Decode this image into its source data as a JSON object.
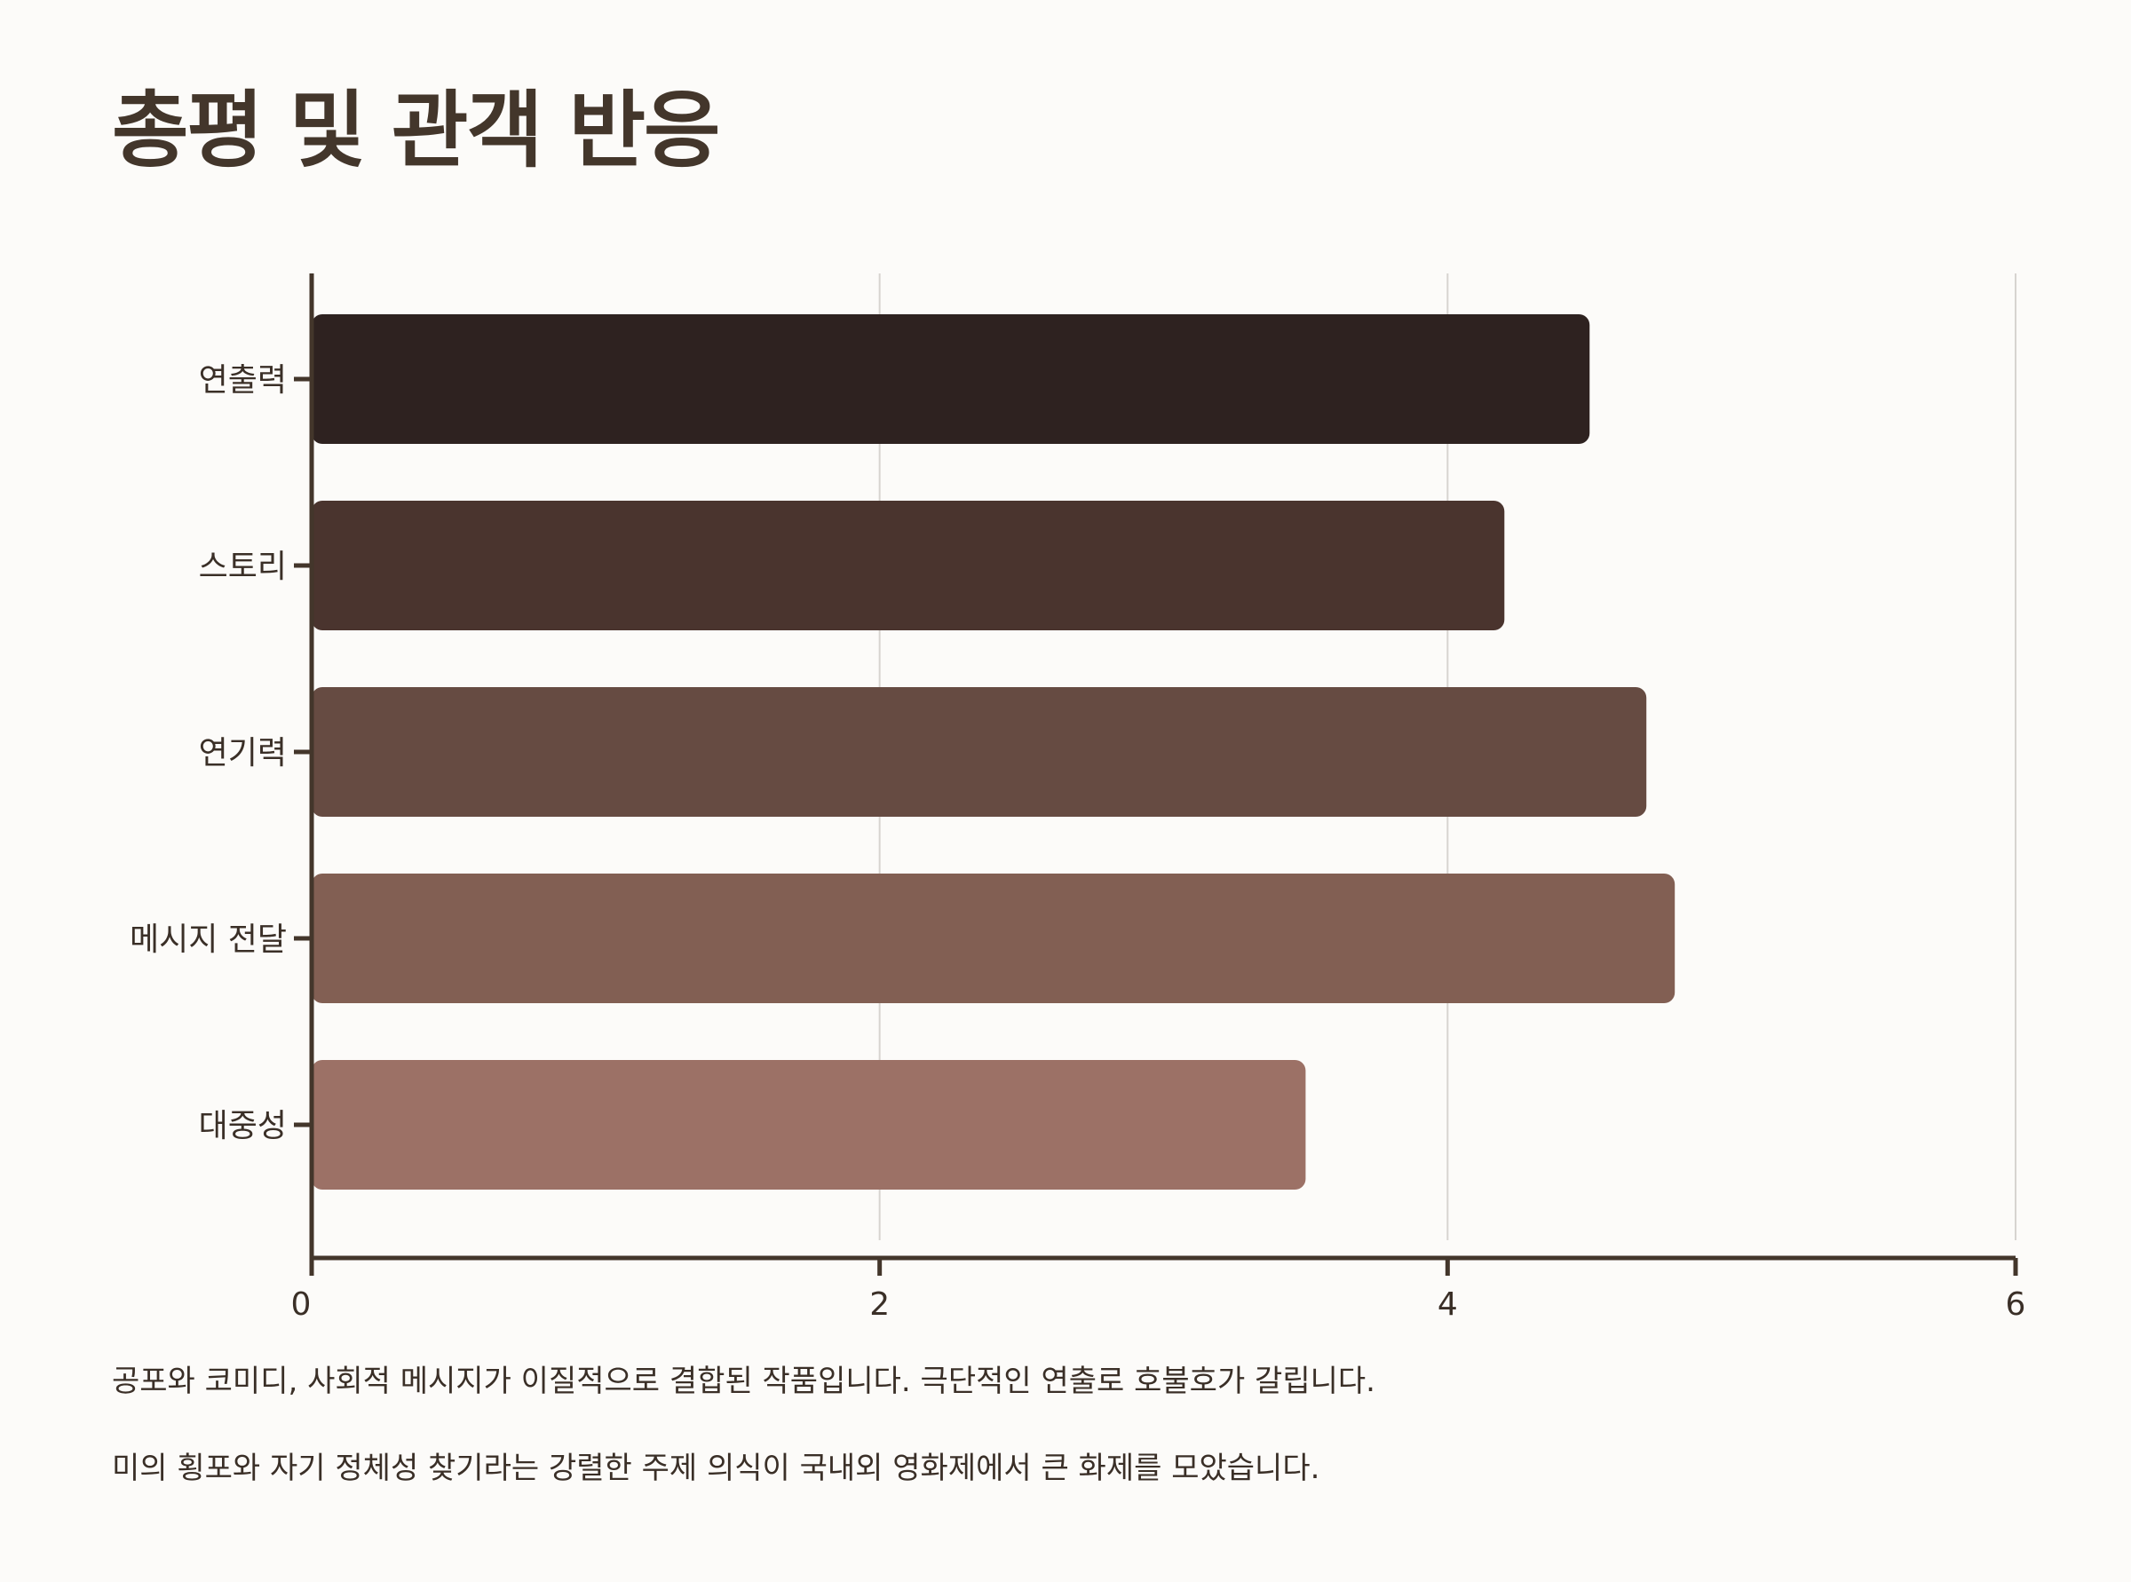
{
  "title": "총평 및 관객 반응",
  "chart_data": {
    "type": "bar",
    "orientation": "horizontal",
    "categories": [
      "연출력",
      "스토리",
      "연기력",
      "메시지 전달",
      "대중성"
    ],
    "values": [
      4.5,
      4.2,
      4.7,
      4.8,
      3.5
    ],
    "colors": [
      "#2e2220",
      "#4a342e",
      "#664b42",
      "#825f53",
      "#9c7166"
    ],
    "xlim": [
      0,
      6
    ],
    "xticks": [
      0,
      2,
      4,
      6
    ],
    "grid": true,
    "xlabel": "",
    "ylabel": ""
  },
  "captions": [
    "공포와 코미디, 사회적 메시지가 이질적으로 결합된 작품입니다. 극단적인 연출로 호불호가 갈립니다.",
    "미의 횡포와 자기 정체성 찾기라는 강렬한 주제 의식이 국내외 영화제에서 큰 화제를 모았습니다."
  ]
}
